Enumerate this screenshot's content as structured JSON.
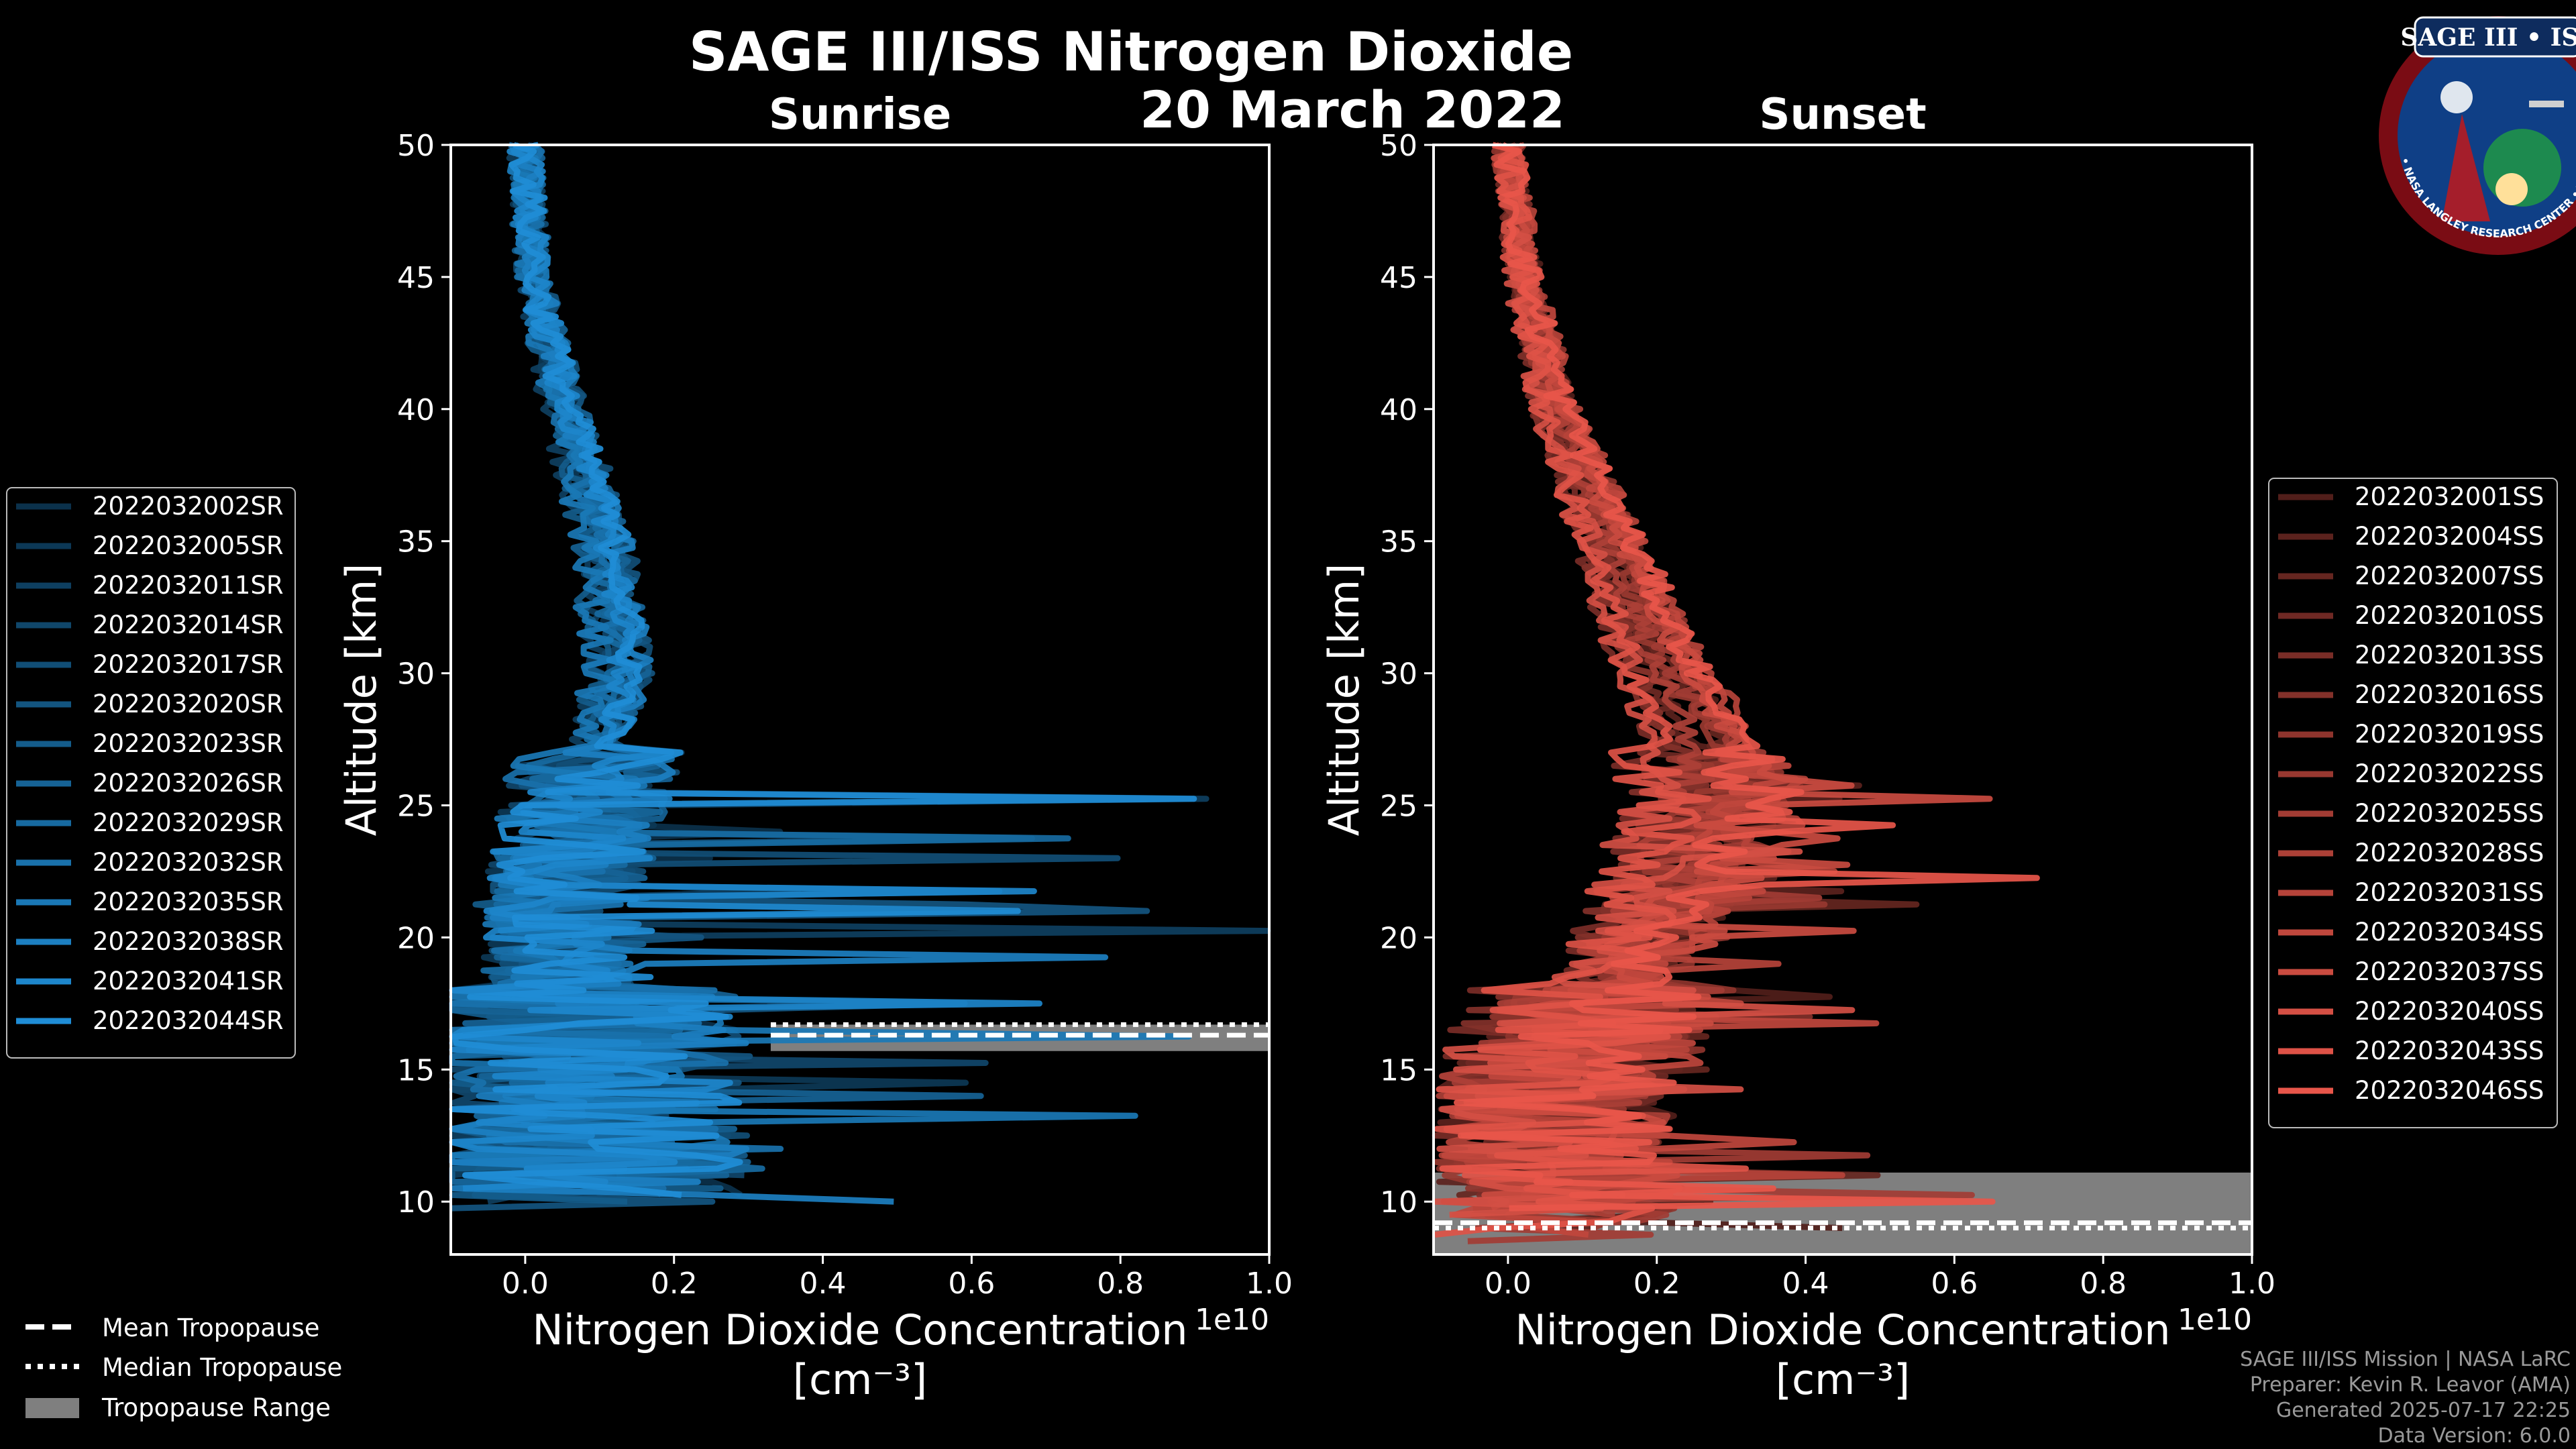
{
  "header": {
    "title": "SAGE III/ISS Nitrogen Dioxide",
    "date": "20 March 2022"
  },
  "logo": {
    "title": "SAGE III • ISS",
    "ring_text": "BALL • NASA LANGLEY RESEARCH CENTER • TAS-I • ESA"
  },
  "colors": {
    "background": "#000000",
    "sunrise": "#1f8dd6",
    "sunset": "#e8564a",
    "tropopause_range": "#7f7f7f"
  },
  "chart_data": [
    {
      "type": "line",
      "title": "Sunrise",
      "xlabel": "Nitrogen Dioxide Concentration",
      "xlabel_unit": "[cm⁻³]",
      "ylabel": "Altitude [km]",
      "x_offset_label": "1e10",
      "xlim": [
        -0.1,
        1.0
      ],
      "ylim": [
        8,
        50
      ],
      "xticks": [
        "0.0",
        "0.2",
        "0.4",
        "0.6",
        "0.8",
        "1.0"
      ],
      "xtick_values": [
        0.0,
        0.2,
        0.4,
        0.6,
        0.8,
        1.0
      ],
      "yticks": [
        "10",
        "15",
        "20",
        "25",
        "30",
        "35",
        "40",
        "45",
        "50"
      ],
      "ytick_values": [
        10,
        15,
        20,
        25,
        30,
        35,
        40,
        45,
        50
      ],
      "legend_position": "left",
      "series_names": [
        "2022032002SR",
        "2022032005SR",
        "2022032011SR",
        "2022032014SR",
        "2022032017SR",
        "2022032020SR",
        "2022032023SR",
        "2022032026SR",
        "2022032029SR",
        "2022032032SR",
        "2022032035SR",
        "2022032038SR",
        "2022032041SR",
        "2022032044SR"
      ],
      "profile_altitudes": [
        50,
        45,
        40,
        35,
        30,
        28,
        26,
        24,
        22,
        20,
        18,
        16,
        14,
        12,
        10
      ],
      "profile_values": [
        0.0,
        0.01,
        0.05,
        0.1,
        0.12,
        0.1,
        0.08,
        0.06,
        0.05,
        0.05,
        0.05,
        0.06,
        0.07,
        0.07,
        0.06
      ],
      "tropopause": {
        "mean": 16.3,
        "median": 16.7,
        "range": [
          15.7,
          16.7
        ]
      }
    },
    {
      "type": "line",
      "title": "Sunset",
      "xlabel": "Nitrogen Dioxide Concentration",
      "xlabel_unit": "[cm⁻³]",
      "ylabel": "Altitude [km]",
      "x_offset_label": "1e10",
      "xlim": [
        -0.1,
        1.0
      ],
      "ylim": [
        8,
        50
      ],
      "xticks": [
        "0.0",
        "0.2",
        "0.4",
        "0.6",
        "0.8",
        "1.0"
      ],
      "xtick_values": [
        0.0,
        0.2,
        0.4,
        0.6,
        0.8,
        1.0
      ],
      "yticks": [
        "10",
        "15",
        "20",
        "25",
        "30",
        "35",
        "40",
        "45",
        "50"
      ],
      "ytick_values": [
        10,
        15,
        20,
        25,
        30,
        35,
        40,
        45,
        50
      ],
      "legend_position": "right",
      "series_names": [
        "2022032001SS",
        "2022032004SS",
        "2022032007SS",
        "2022032010SS",
        "2022032013SS",
        "2022032016SS",
        "2022032019SS",
        "2022032022SS",
        "2022032025SS",
        "2022032028SS",
        "2022032031SS",
        "2022032034SS",
        "2022032037SS",
        "2022032040SS",
        "2022032043SS",
        "2022032046SS"
      ],
      "profile_altitudes": [
        50,
        45,
        40,
        35,
        30,
        28,
        26,
        24,
        22,
        20,
        18,
        16,
        14,
        12,
        10
      ],
      "profile_values": [
        0.0,
        0.02,
        0.06,
        0.13,
        0.2,
        0.24,
        0.26,
        0.25,
        0.22,
        0.18,
        0.13,
        0.09,
        0.06,
        0.05,
        0.06
      ],
      "tropopause": {
        "mean": 9.2,
        "median": 9.0,
        "range": [
          8.0,
          11.1
        ]
      }
    }
  ],
  "shared_legend": {
    "mean": "Mean Tropopause",
    "median": "Median Tropopause",
    "range": "Tropopause Range"
  },
  "footer": {
    "line1": "SAGE III/ISS Mission | NASA LaRC",
    "line2": "Preparer: Kevin R. Leavor (AMA)",
    "line3": "Generated 2025-07-17 22:25",
    "line4": "Data Version: 6.0.0"
  }
}
